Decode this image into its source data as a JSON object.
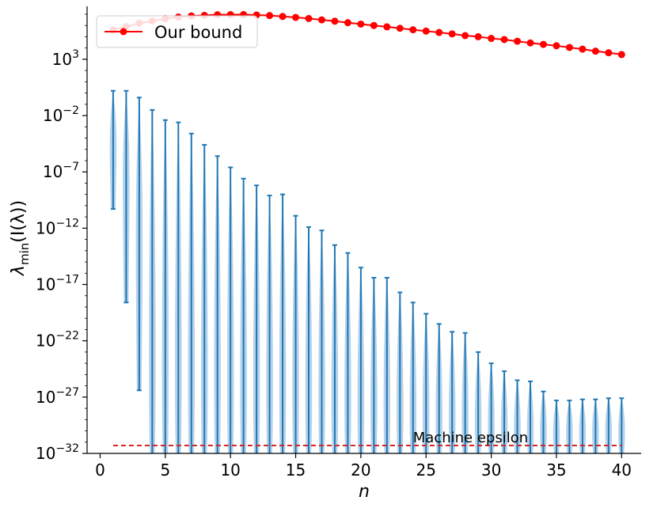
{
  "chart_data": {
    "type": "line",
    "title": "",
    "xlabel": "n",
    "ylabel_base": "λ",
    "ylabel_sub": "min",
    "ylabel_paren": "(I(λ))",
    "yscale": "log",
    "xlim": [
      -1,
      41.5
    ],
    "ylim_exp": [
      -32,
      7.7
    ],
    "x_ticks": [
      0,
      5,
      10,
      15,
      20,
      25,
      30,
      35,
      40
    ],
    "x_tick_labels": [
      "0",
      "5",
      "10",
      "15",
      "20",
      "25",
      "30",
      "35",
      "40"
    ],
    "y_tick_exps": [
      -32,
      -27,
      -22,
      -17,
      -12,
      -7,
      -2,
      3
    ],
    "y_tick_labels": [
      "10",
      "10",
      "10",
      "10",
      "10",
      "10",
      "10",
      "10"
    ],
    "y_tick_sups": [
      "−32",
      "−27",
      "−22",
      "−17",
      "−12",
      "−7",
      "−2",
      "3"
    ],
    "legend": {
      "label": "Our bound",
      "location": "upper left"
    },
    "colors": {
      "bound": "#ff0000",
      "range": "#1f77b4",
      "violin": "#aecde8",
      "epsilon": "#d62728"
    },
    "bound_series": {
      "name": "Our bound",
      "x": [
        1,
        2,
        3,
        4,
        5,
        6,
        7,
        8,
        9,
        10,
        11,
        12,
        13,
        14,
        15,
        16,
        17,
        18,
        19,
        20,
        21,
        22,
        23,
        24,
        25,
        26,
        27,
        28,
        29,
        30,
        31,
        32,
        33,
        34,
        35,
        36,
        37,
        38,
        39,
        40
      ],
      "log10_values": [
        5.6,
        5.9,
        6.2,
        6.4,
        6.6,
        6.75,
        6.85,
        6.9,
        6.95,
        6.96,
        6.97,
        6.93,
        6.88,
        6.8,
        6.72,
        6.62,
        6.5,
        6.38,
        6.25,
        6.12,
        6.0,
        5.88,
        5.75,
        5.62,
        5.5,
        5.38,
        5.25,
        5.1,
        5.0,
        4.85,
        4.75,
        4.6,
        4.45,
        4.32,
        4.2,
        4.05,
        3.9,
        3.72,
        3.58,
        3.42
      ]
    },
    "range_series": {
      "x": [
        1,
        2,
        3,
        4,
        5,
        6,
        7,
        8,
        9,
        10,
        11,
        12,
        13,
        14,
        15,
        16,
        17,
        18,
        19,
        20,
        21,
        22,
        23,
        24,
        25,
        26,
        27,
        28,
        29,
        30,
        31,
        32,
        33,
        34,
        35,
        36,
        37,
        38,
        39,
        40
      ],
      "log10_max": [
        0.2,
        0.2,
        -0.4,
        -1.5,
        -2.4,
        -2.6,
        -3.6,
        -4.6,
        -5.6,
        -6.6,
        -7.6,
        -8.2,
        -9.1,
        -9.0,
        -10.9,
        -11.9,
        -12.2,
        -13.5,
        -14.2,
        -15.5,
        -16.4,
        -16.4,
        -17.7,
        -18.6,
        -19.6,
        -20.5,
        -21.2,
        -21.3,
        -23.0,
        -24.0,
        -24.7,
        -25.5,
        -25.6,
        -26.5,
        -27.3,
        -27.3,
        -27.2,
        -27.2,
        -27.1,
        -27.1
      ],
      "log10_min": [
        -10.3,
        -18.6,
        -26.4,
        -32,
        -32,
        -32,
        -32,
        -32,
        -32,
        -32,
        -32,
        -32,
        -32,
        -32,
        -32,
        -32,
        -32,
        -32,
        -32,
        -32,
        -32,
        -32,
        -32,
        -32,
        -32,
        -32,
        -32,
        -32,
        -32,
        -32,
        -32,
        -32,
        -32,
        -32,
        -32,
        -32,
        -32,
        -32,
        -32,
        -32
      ],
      "violin_center_log10": [
        -4,
        -5,
        -11,
        -30,
        -31,
        -31,
        -31,
        -31,
        -31,
        -31,
        -31,
        -31,
        -31,
        -31,
        -31,
        -31,
        -31,
        -31,
        -31,
        -31,
        -31,
        -31,
        -31,
        -31,
        -31,
        -31,
        -31,
        -31,
        -31,
        -31,
        -31,
        -31,
        -31,
        -30.5,
        -30.5,
        -30.5,
        -30.5,
        -30.5,
        -30.5,
        -30.5
      ]
    },
    "epsilon_line": {
      "log10_value": -31.3,
      "x_range": [
        1,
        40
      ]
    },
    "annotation": {
      "text": "Machine epsilon",
      "x": 24,
      "log10_y": -30.6
    }
  }
}
